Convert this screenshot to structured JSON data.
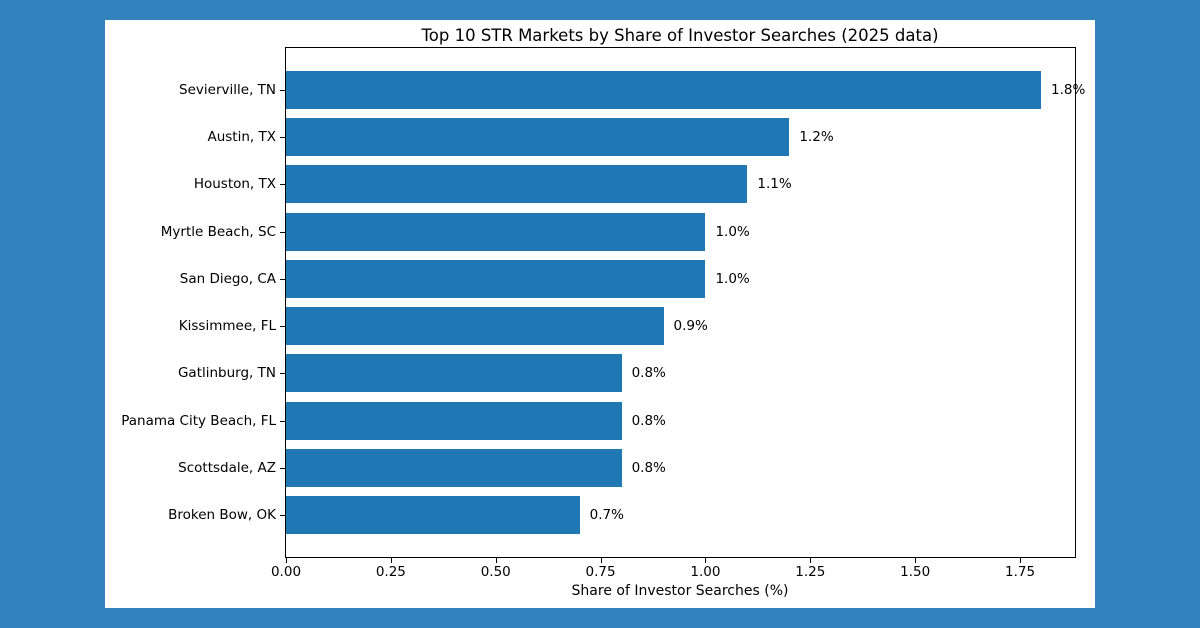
{
  "figure": {
    "background_color": "#3182bd",
    "card_color": "#ffffff"
  },
  "chart_data": {
    "type": "bar",
    "orientation": "horizontal",
    "title": "Top 10 STR Markets by Share of Investor Searches (2025 data)",
    "xlabel": "Share of Investor Searches (%)",
    "ylabel": "",
    "categories": [
      "Sevierville, TN",
      "Austin, TX",
      "Houston, TX",
      "Myrtle Beach, SC",
      "San Diego, CA",
      "Kissimmee, FL",
      "Gatlinburg, TN",
      "Panama City Beach, FL",
      "Scottsdale, AZ",
      "Broken Bow, OK"
    ],
    "values": [
      1.8,
      1.2,
      1.1,
      1.0,
      1.0,
      0.9,
      0.8,
      0.8,
      0.8,
      0.7
    ],
    "value_labels": [
      "1.8%",
      "1.2%",
      "1.1%",
      "1.0%",
      "1.0%",
      "0.9%",
      "0.8%",
      "0.8%",
      "0.8%",
      "0.7%"
    ],
    "xlim": [
      0,
      1.881
    ],
    "xticks": [
      0,
      0.25,
      0.5,
      0.75,
      1.0,
      1.25,
      1.5,
      1.75
    ],
    "xtick_labels": [
      "0.00",
      "0.25",
      "0.50",
      "0.75",
      "1.00",
      "1.25",
      "1.50",
      "1.75"
    ],
    "bar_color": "#1f77b4",
    "grid": false,
    "legend_position": "none"
  }
}
